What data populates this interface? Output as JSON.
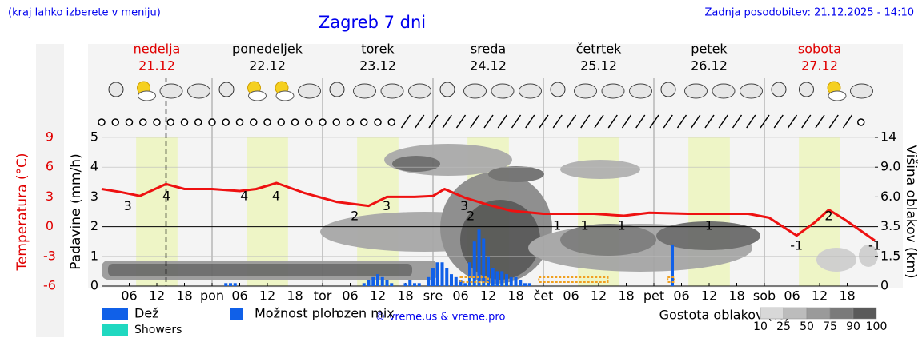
{
  "chart_data": {
    "type": "meteogram",
    "title": "Zagreb 7 dni",
    "subtitle_left": "(kraj lahko izberete v meniju)",
    "subtitle_right": "Zadnja posodobitev: 21.12.2025 - 14:10",
    "days": [
      {
        "name": "nedelja",
        "date": "21.12",
        "color": "#e00000"
      },
      {
        "name": "ponedeljek",
        "date": "22.12",
        "color": "#000000"
      },
      {
        "name": "torek",
        "date": "23.12",
        "color": "#000000"
      },
      {
        "name": "sreda",
        "date": "24.12",
        "color": "#000000"
      },
      {
        "name": "četrtek",
        "date": "25.12",
        "color": "#000000"
      },
      {
        "name": "petek",
        "date": "26.12",
        "color": "#000000"
      },
      {
        "name": "sobota",
        "date": "27.12",
        "color": "#e00000"
      }
    ],
    "xlim": [
      0,
      168
    ],
    "xticks": [
      {
        "value": 6,
        "label": "06"
      },
      {
        "value": 12,
        "label": "12"
      },
      {
        "value": 18,
        "label": "18"
      },
      {
        "value": 24,
        "label": "pon"
      },
      {
        "value": 30,
        "label": "06"
      },
      {
        "value": 36,
        "label": "12"
      },
      {
        "value": 42,
        "label": "18"
      },
      {
        "value": 48,
        "label": "tor"
      },
      {
        "value": 54,
        "label": "06"
      },
      {
        "value": 60,
        "label": "12"
      },
      {
        "value": 66,
        "label": "18"
      },
      {
        "value": 72,
        "label": "sre"
      },
      {
        "value": 78,
        "label": "06"
      },
      {
        "value": 84,
        "label": "12"
      },
      {
        "value": 90,
        "label": "18"
      },
      {
        "value": 96,
        "label": "čet"
      },
      {
        "value": 102,
        "label": "06"
      },
      {
        "value": 108,
        "label": "12"
      },
      {
        "value": 114,
        "label": "18"
      },
      {
        "value": 120,
        "label": "pet"
      },
      {
        "value": 126,
        "label": "06"
      },
      {
        "value": 132,
        "label": "12"
      },
      {
        "value": 138,
        "label": "18"
      },
      {
        "value": 144,
        "label": "sob"
      },
      {
        "value": 150,
        "label": "06"
      },
      {
        "value": 156,
        "label": "12"
      },
      {
        "value": 162,
        "label": "18"
      }
    ],
    "now": 14,
    "ylabel": "Temperatura (°C)",
    "ylim": [
      -6,
      9
    ],
    "yticks": [
      -6,
      -3,
      0,
      3,
      6,
      9
    ],
    "y2label": "Padavine (mm/h)",
    "y2lim": [
      0,
      5
    ],
    "y2ticks": [
      0,
      1,
      2,
      3,
      4,
      5
    ],
    "y3label": "Višina oblakov (km)",
    "y3ticks": [
      0,
      1.5,
      3.5,
      {
        "value": 6,
        "label": "6.0"
      },
      {
        "value": 9,
        "label": "9.0"
      },
      14
    ],
    "temperature": {
      "color": "#ee1111",
      "x": [
        0,
        4,
        8.3,
        14,
        18,
        24,
        30,
        33.6,
        38,
        44,
        51,
        58,
        62,
        68,
        72,
        74.5,
        79,
        84,
        89,
        96,
        107,
        113.5,
        119,
        127.5,
        134,
        140.5,
        145,
        151,
        155,
        158,
        161.5,
        168
      ],
      "values": [
        3.8,
        3.5,
        3.1,
        4.3,
        3.8,
        3.8,
        3.6,
        3.8,
        4.4,
        3.4,
        2.5,
        2.1,
        3.0,
        3.0,
        3.1,
        3.8,
        2.9,
        2.2,
        1.6,
        1.3,
        1.3,
        1.1,
        1.4,
        1.3,
        1.3,
        1.3,
        0.9,
        -0.9,
        0.45,
        1.7,
        0.7,
        -1.4
      ]
    },
    "temp_labels": [
      {
        "x": 5.7,
        "value": 3
      },
      {
        "x": 14.1,
        "value": 4
      },
      {
        "x": 31,
        "value": 4
      },
      {
        "x": 37.9,
        "value": 4
      },
      {
        "x": 55,
        "value": 2
      },
      {
        "x": 61.9,
        "value": 3
      },
      {
        "x": 78.8,
        "value": 3
      },
      {
        "x": 80.2,
        "value": 2
      },
      {
        "x": 99,
        "value": 1
      },
      {
        "x": 105,
        "value": 1
      },
      {
        "x": 113,
        "value": 1
      },
      {
        "x": 132,
        "value": 1
      },
      {
        "x": 151,
        "value": -1
      },
      {
        "x": 158,
        "value": 2
      },
      {
        "x": 168,
        "value": -1
      }
    ],
    "precipitation": {
      "color": "#1060e8",
      "x": [
        27,
        28,
        29,
        57,
        58,
        59,
        60,
        61,
        62,
        63,
        66,
        67,
        68,
        69,
        71,
        72,
        73,
        74,
        75,
        76,
        77,
        78,
        79,
        80,
        81,
        82,
        83,
        84,
        85,
        86,
        87,
        88,
        89,
        90,
        91,
        92,
        93,
        124
      ],
      "values": [
        0.1,
        0.1,
        0.1,
        0.1,
        0.2,
        0.3,
        0.4,
        0.3,
        0.2,
        0.1,
        0.1,
        0.2,
        0.1,
        0.1,
        0.3,
        0.6,
        0.8,
        0.8,
        0.6,
        0.4,
        0.3,
        0.2,
        0.1,
        0.8,
        1.5,
        1.9,
        1.6,
        1.0,
        0.6,
        0.5,
        0.5,
        0.4,
        0.3,
        0.3,
        0.2,
        0.1,
        0.1,
        1.4
      ]
    },
    "legend": [
      {
        "name": "Dež",
        "color": "#1060e8"
      },
      {
        "name": "Možnost ploh",
        "color": "#1060e8"
      },
      {
        "name": "Showers",
        "color": "#20d8c0"
      },
      {
        "name": "ozen mix",
        "color": "#ffffff"
      }
    ],
    "credit": "© vreme.us & vreme.pro",
    "cloud_legend": {
      "title": "Gostota oblakov (%)",
      "ticks": [
        10,
        25,
        50,
        75,
        90,
        100
      ],
      "colors": [
        "#d8d8d8",
        "#bcbcbc",
        "#9a9a9a",
        "#7a7a7a",
        "#5a5a5a"
      ]
    }
  }
}
